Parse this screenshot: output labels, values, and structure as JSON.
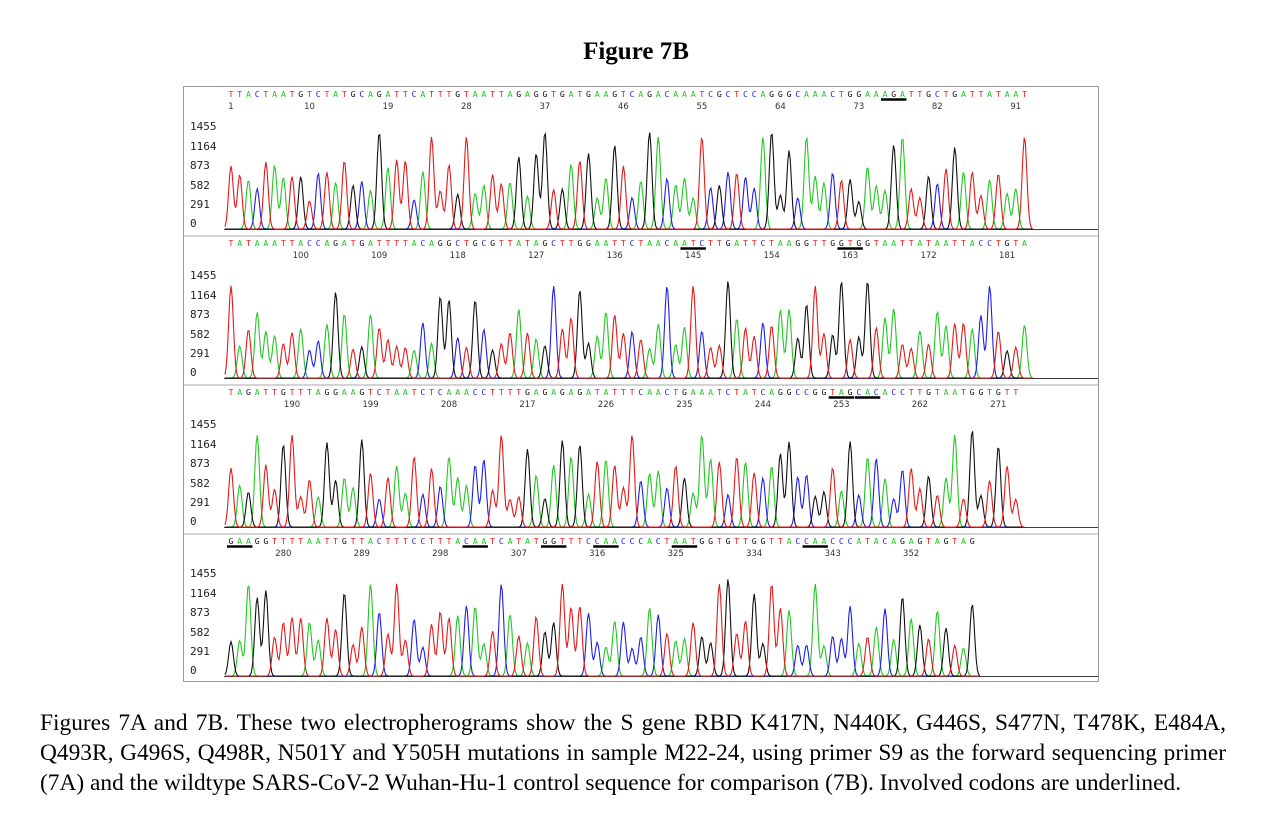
{
  "figure_title": "Figure 7B",
  "caption": "Figures 7A and 7B. These two electropherograms show the S gene RBD K417N, N440K, G446S, S477N, T478K, E484A, Q493R, G496S, Q498R, N501Y and Y505H mutations in sample M22-24, using primer S9 as the forward sequencing primer (7A) and the wildtype SARS-CoV-2 Wuhan-Hu-1 control sequence for comparison (7B). Involved codons are underlined.",
  "colors": {
    "A": "#22c822",
    "C": "#1f1fe6",
    "G": "#111111",
    "T": "#e41a1a",
    "border": "#9a9a9a"
  },
  "chart_data": {
    "type": "line",
    "y_ticks": [
      "1455",
      "1164",
      "873",
      "582",
      "291",
      "0"
    ],
    "panels": [
      {
        "sequence": "TTACTAATGTCTATGCAGATTCATTTGTAATTAGAGGTGATGAAGTCAGACAAATCGCTCCAGGGCAAACTGGAAAGATTGCTGATTATAAT",
        "start": 1,
        "position_labels": [
          "1",
          "10",
          "19",
          "28",
          "37",
          "46",
          "55",
          "64",
          "73",
          "82",
          "91"
        ],
        "underlined_codon_starts": [
          76
        ]
      },
      {
        "sequence": "TATAAATTACCAGATGATTTTACAGGCTGCGTTATAGCTTGGAATTCTAACAATCTTGATTCTAAGGTTGGTGGTAATTATAATTACCTGTA",
        "start": 92,
        "position_labels": [
          "100",
          "109",
          "118",
          "127",
          "136",
          "145",
          "154",
          "163",
          "172",
          "181"
        ],
        "underlined_codon_starts": [
          144,
          162
        ]
      },
      {
        "sequence": "TAGATTGTTTAGGAAGTCTAATCTCAAACCTTTTGAGAGAGATATTTCAACTGAAATCTATCAGGCCGGTAGCACACCTTGTAATGGTGTT",
        "start": 183,
        "position_labels": [
          "190",
          "199",
          "208",
          "217",
          "226",
          "235",
          "244",
          "253",
          "262",
          "271"
        ],
        "underlined_codon_starts": [
          252,
          255
        ]
      },
      {
        "sequence": "GAAGGTTTTAATTGTTACTTTCCTTTACAATCATATGGTTTCCAACCCACTAATGGTGTTGGTTACCAACCCATACAGAGTAGTAG",
        "start": 274,
        "position_labels": [
          "280",
          "289",
          "298",
          "307",
          "316",
          "325",
          "334",
          "343",
          "352"
        ],
        "underlined_codon_starts": [
          274,
          301,
          310,
          316,
          325,
          340
        ]
      }
    ]
  }
}
